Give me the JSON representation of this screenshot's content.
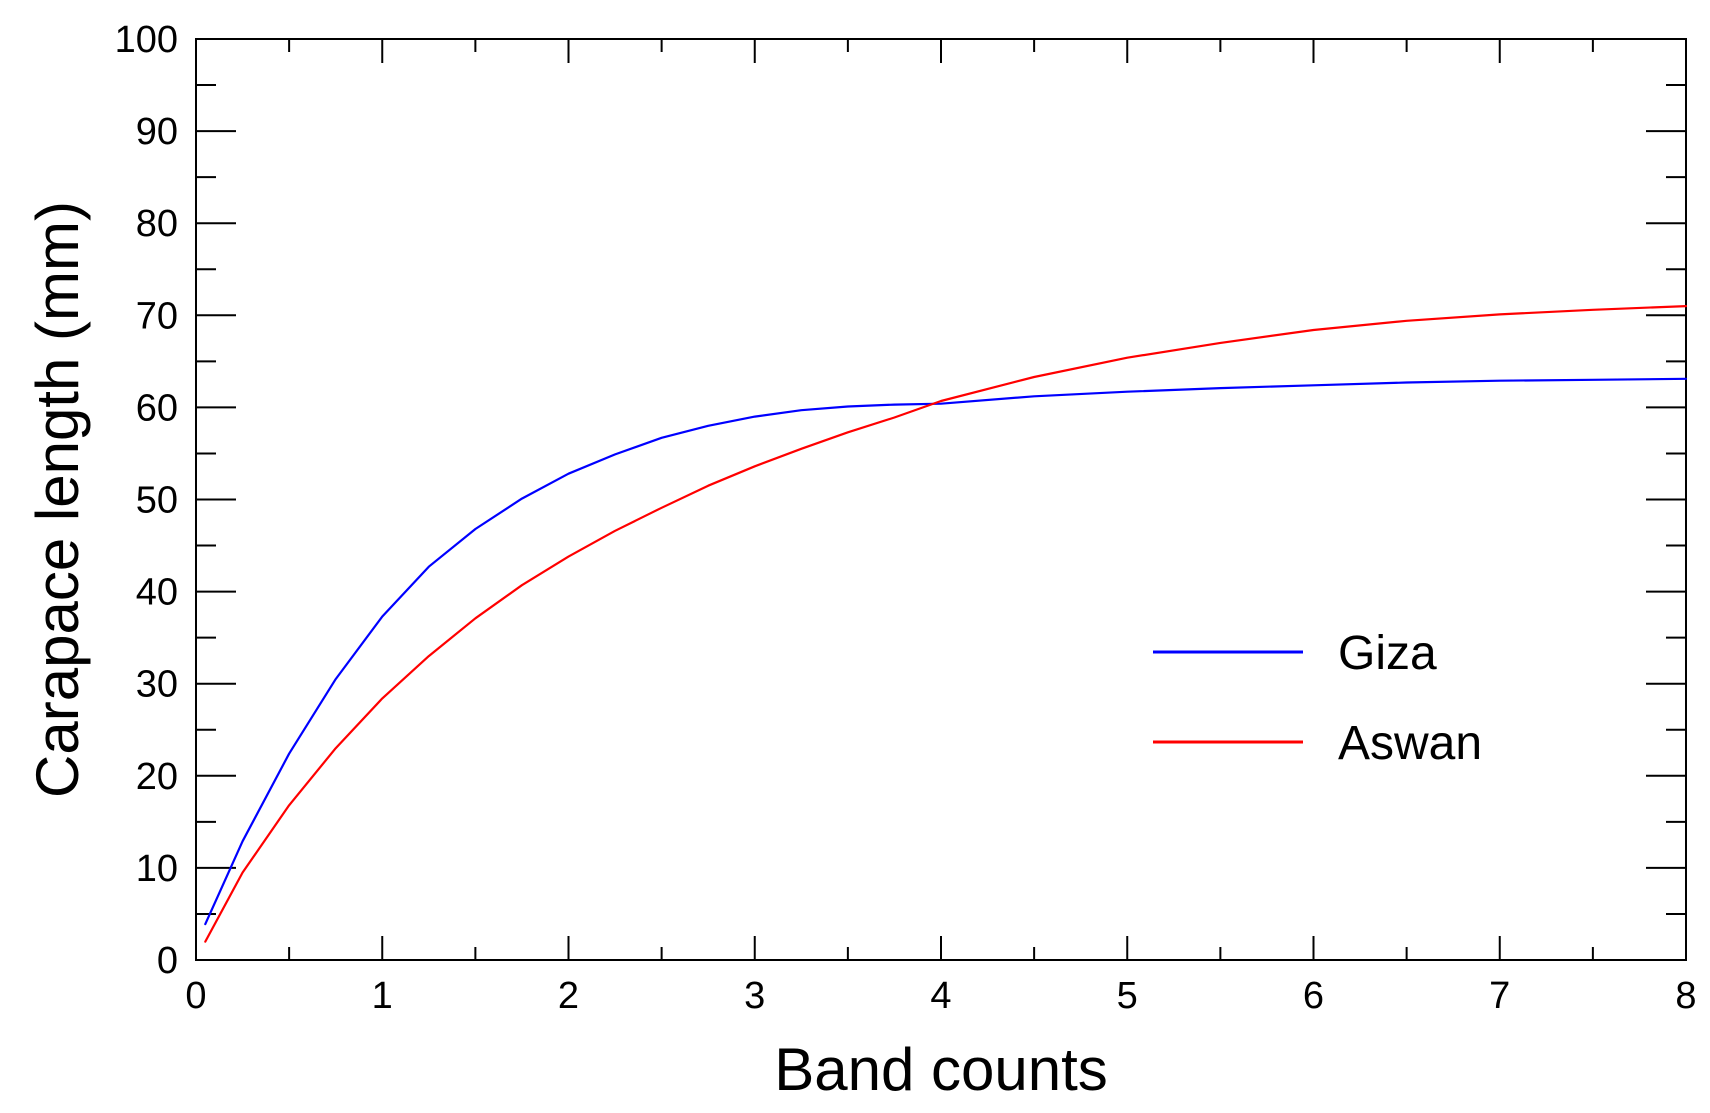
{
  "chart_data": {
    "type": "line",
    "title": "",
    "xlabel": "Band counts",
    "ylabel": "Carapace length (mm)",
    "xlim": [
      0,
      8
    ],
    "ylim": [
      0,
      100
    ],
    "x_ticks": [
      0,
      1,
      2,
      3,
      4,
      5,
      6,
      7,
      8
    ],
    "y_ticks": [
      0,
      10,
      20,
      30,
      40,
      50,
      60,
      70,
      80,
      90,
      100
    ],
    "grid": false,
    "legend": "center-right",
    "series": [
      {
        "name": "Giza",
        "color": "#0000ff",
        "x": [
          0.05,
          0.25,
          0.5,
          0.75,
          1.0,
          1.25,
          1.5,
          1.75,
          2.0,
          2.25,
          2.5,
          2.75,
          3.0,
          3.25,
          3.5,
          3.75,
          4.0,
          4.5,
          5.0,
          5.5,
          6.0,
          6.5,
          7.0,
          7.5,
          8.0
        ],
        "y": [
          3.9,
          12.9,
          22.4,
          30.5,
          37.3,
          42.7,
          46.8,
          50.1,
          52.8,
          54.9,
          56.7,
          58.0,
          59.0,
          59.7,
          60.1,
          60.3,
          60.4,
          61.2,
          61.7,
          62.1,
          62.4,
          62.7,
          62.9,
          63.0,
          63.1
        ]
      },
      {
        "name": "Aswan",
        "color": "#ff0000",
        "x": [
          0.05,
          0.25,
          0.5,
          0.75,
          1.0,
          1.25,
          1.5,
          1.75,
          2.0,
          2.25,
          2.5,
          2.75,
          3.0,
          3.25,
          3.5,
          3.75,
          4.0,
          4.5,
          5.0,
          5.5,
          6.0,
          6.5,
          7.0,
          7.5,
          8.0
        ],
        "y": [
          2.0,
          9.5,
          16.8,
          23.0,
          28.4,
          33.0,
          37.1,
          40.7,
          43.8,
          46.6,
          49.1,
          51.5,
          53.6,
          55.5,
          57.3,
          58.9,
          60.7,
          63.3,
          65.4,
          67.0,
          68.4,
          69.4,
          70.1,
          70.6,
          71.0
        ]
      }
    ]
  }
}
